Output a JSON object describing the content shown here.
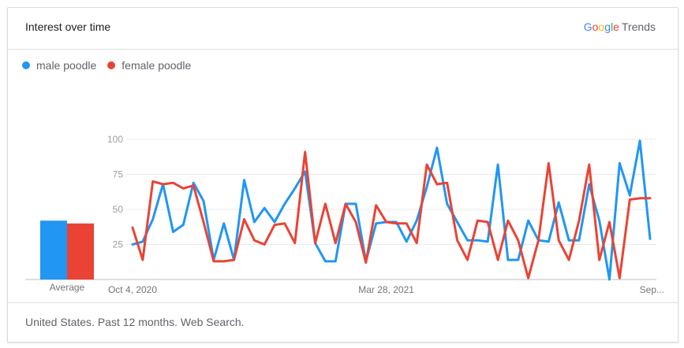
{
  "header": {
    "title": "Interest over time",
    "logo_google": "Google",
    "logo_trends": "Trends"
  },
  "footer": {
    "text": "United States. Past 12 months. Web Search."
  },
  "colors": {
    "male": "#2196f3",
    "female": "#ea4335",
    "google_blue": "#4285f4",
    "google_red": "#ea4335",
    "google_yellow": "#fbbc05",
    "google_green": "#34a853"
  },
  "chart_data": {
    "type": "line",
    "ylim": [
      0,
      100
    ],
    "y_ticks": [
      "25",
      "50",
      "75",
      "100"
    ],
    "x_tick_labels": [
      "Oct 4, 2020",
      "Mar 28, 2021",
      "Sep..."
    ],
    "x_tick_indices": [
      0,
      25,
      51
    ],
    "average_label": "Average",
    "series": [
      {
        "name": "male poodle",
        "average": 42,
        "values": [
          25,
          27,
          43,
          68,
          34,
          39,
          69,
          56,
          14,
          40,
          14,
          71,
          41,
          51,
          41,
          54,
          65,
          77,
          26,
          13,
          13,
          54,
          54,
          13,
          40,
          41,
          41,
          27,
          42,
          66,
          94,
          54,
          41,
          28,
          28,
          27,
          82,
          14,
          14,
          42,
          28,
          27,
          55,
          28,
          28,
          68,
          42,
          0,
          83,
          60,
          99,
          29
        ]
      },
      {
        "name": "female poodle",
        "average": 40,
        "values": [
          37,
          14,
          70,
          68,
          69,
          65,
          67,
          41,
          13,
          13,
          14,
          43,
          28,
          25,
          39,
          40,
          26,
          91,
          26,
          54,
          26,
          54,
          41,
          12,
          53,
          41,
          40,
          40,
          26,
          82,
          68,
          69,
          28,
          14,
          42,
          41,
          14,
          42,
          28,
          1,
          28,
          83,
          28,
          14,
          42,
          82,
          14,
          41,
          1,
          57,
          58,
          58
        ]
      }
    ]
  }
}
